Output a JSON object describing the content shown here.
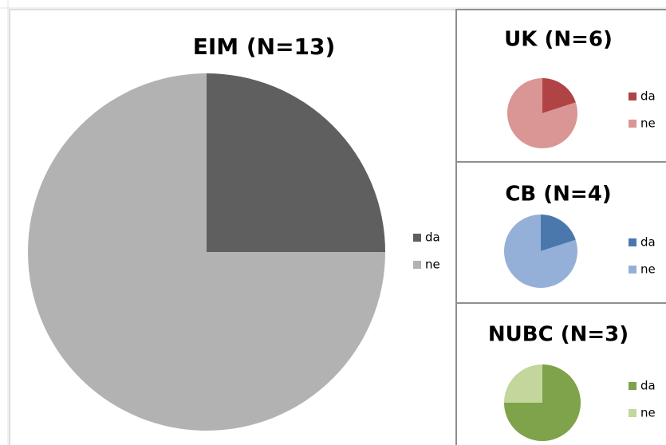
{
  "chart_data": [
    {
      "type": "pie",
      "title": "EIM (N=13)",
      "categories": [
        "da",
        "ne"
      ],
      "values": [
        25,
        75
      ],
      "colors": [
        "#5f5f5f",
        "#b2b2b2"
      ]
    },
    {
      "type": "pie",
      "title": "UK (N=6)",
      "categories": [
        "da",
        "ne"
      ],
      "values": [
        20,
        80
      ],
      "colors": [
        "#b04343",
        "#d99694"
      ]
    },
    {
      "type": "pie",
      "title": "CB (N=4)",
      "categories": [
        "da",
        "ne"
      ],
      "values": [
        20,
        80
      ],
      "colors": [
        "#4a78ad",
        "#95b0d8"
      ]
    },
    {
      "type": "pie",
      "title": "NUBC (N=3)",
      "categories": [
        "da",
        "ne"
      ],
      "values": [
        75,
        25
      ],
      "colors": [
        "#7ea34a",
        "#c3d69b"
      ]
    }
  ]
}
